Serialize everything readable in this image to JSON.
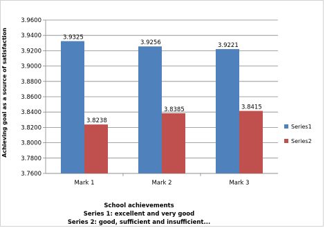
{
  "chart_data": {
    "type": "bar",
    "categories": [
      "Mark 1",
      "Mark 2",
      "Mark 3"
    ],
    "series": [
      {
        "name": "Series1",
        "values": [
          3.9325,
          3.9256,
          3.9221
        ],
        "color": "#4f81bd"
      },
      {
        "name": "Series2",
        "values": [
          3.8238,
          3.8385,
          3.8415
        ],
        "color": "#c0504d"
      }
    ],
    "data_labels": [
      [
        "3.9325",
        "3.9256",
        "3.9221"
      ],
      [
        "3.8238",
        "3.8385",
        "3.8415"
      ]
    ],
    "ylabel": "Achieving goal as a source of satisfaction",
    "xlabel": "School achievements",
    "xlabel_lines": [
      "Series 1: excellent and very good",
      "Series 2: good, sufficient and insufficient..."
    ],
    "ylim": [
      3.76,
      3.96
    ],
    "yticks": [
      "3.7600",
      "3.7800",
      "3.8000",
      "3.8200",
      "3.8400",
      "3.8600",
      "3.8800",
      "3.9000",
      "3.9200",
      "3.9400",
      "3.9600"
    ],
    "grid": true,
    "legend_position": "right"
  }
}
